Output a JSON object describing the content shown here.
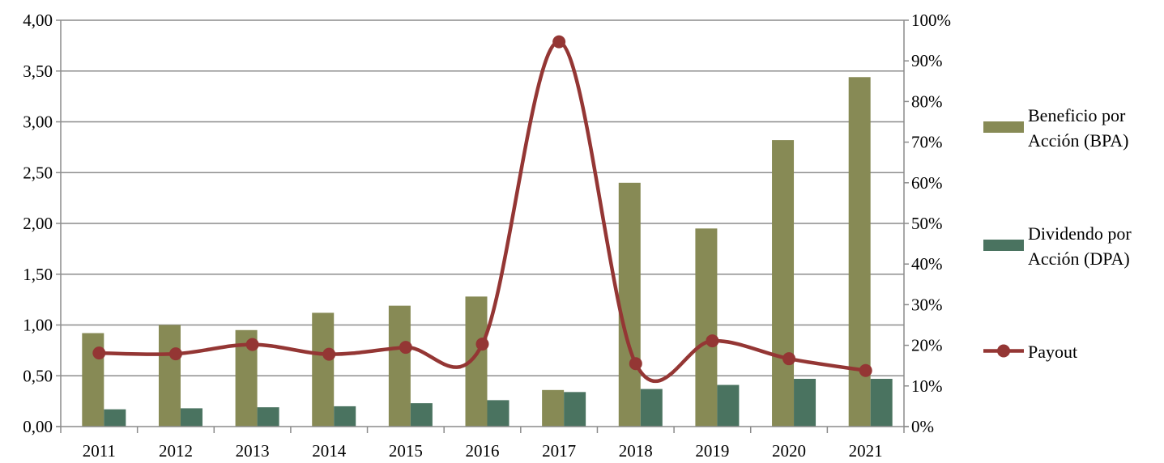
{
  "chart_data": {
    "type": "bar",
    "categories": [
      "2011",
      "2012",
      "2013",
      "2014",
      "2015",
      "2016",
      "2017",
      "2018",
      "2019",
      "2020",
      "2021"
    ],
    "series": [
      {
        "name": "Beneficio por Acción (BPA)",
        "legend_lines": [
          "Beneficio por",
          "Acción (BPA)"
        ],
        "type": "bar",
        "axis": "left",
        "color": "#878A55",
        "values": [
          0.92,
          1.0,
          0.95,
          1.12,
          1.19,
          1.28,
          0.36,
          2.4,
          1.95,
          2.82,
          3.44
        ]
      },
      {
        "name": "Dividendo por Acción (DPA)",
        "legend_lines": [
          "Dividendo por",
          "Acción (DPA)"
        ],
        "type": "bar",
        "axis": "left",
        "color": "#4A7360",
        "values": [
          0.17,
          0.18,
          0.19,
          0.2,
          0.23,
          0.26,
          0.34,
          0.37,
          0.41,
          0.47,
          0.47
        ]
      },
      {
        "name": "Payout",
        "legend_lines": [
          "Payout"
        ],
        "type": "line",
        "smooth": true,
        "axis": "right",
        "color": "#943634",
        "values": [
          18.1,
          17.9,
          20.2,
          17.8,
          19.5,
          20.3,
          94.7,
          15.5,
          21.1,
          16.7,
          13.8
        ]
      }
    ],
    "y_left": {
      "min": 0,
      "max": 4.0,
      "step": 0.5,
      "tick_labels": [
        "0,00",
        "0,50",
        "1,00",
        "1,50",
        "2,00",
        "2,50",
        "3,00",
        "3,50",
        "4,00"
      ]
    },
    "y_right": {
      "min": 0,
      "max": 100,
      "step": 10,
      "tick_labels": [
        "0%",
        "10%",
        "20%",
        "30%",
        "40%",
        "50%",
        "60%",
        "70%",
        "80%",
        "90%",
        "100%"
      ]
    },
    "grid": true,
    "legend_position": "right",
    "title": "",
    "xlabel": "",
    "ylabel": ""
  }
}
